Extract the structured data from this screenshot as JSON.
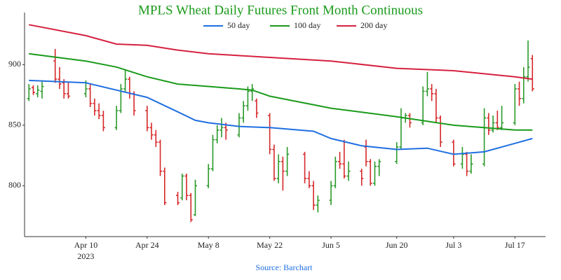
{
  "chart_data": {
    "type": "ohlc",
    "title": "MPLS Wheat Daily Futures Front Month Continuous",
    "title_color": "#1a9a1a",
    "xlabel": "Source: Barchart",
    "xlabel_color": "#1f6fe0",
    "xlim": [
      "2023-03-27",
      "2023-07-24"
    ],
    "xticks": [
      {
        "value": "2023-04-10",
        "label": "Apr 10"
      },
      {
        "value": "2023-04-24",
        "label": "Apr 24"
      },
      {
        "value": "2023-05-08",
        "label": "May 8"
      },
      {
        "value": "2023-05-22",
        "label": "May 22"
      },
      {
        "value": "2023-06-05",
        "label": "Jun 5"
      },
      {
        "value": "2023-06-20",
        "label": "Jun 20"
      },
      {
        "value": "2023-07-03",
        "label": "Jul 3"
      },
      {
        "value": "2023-07-17",
        "label": "Jul 17"
      }
    ],
    "xtick_year": "2023",
    "ylim": [
      758,
      943
    ],
    "yticks": [
      800,
      850,
      900
    ],
    "grid": false,
    "legend": "top",
    "up_color": "#2a9a2a",
    "down_color": "#d62728",
    "x": [
      "2023-03-28",
      "2023-03-29",
      "2023-03-30",
      "2023-03-31",
      "2023-04-03",
      "2023-04-04",
      "2023-04-05",
      "2023-04-06",
      "2023-04-10",
      "2023-04-11",
      "2023-04-12",
      "2023-04-13",
      "2023-04-14",
      "2023-04-17",
      "2023-04-18",
      "2023-04-19",
      "2023-04-20",
      "2023-04-21",
      "2023-04-24",
      "2023-04-25",
      "2023-04-26",
      "2023-04-27",
      "2023-04-28",
      "2023-05-01",
      "2023-05-02",
      "2023-05-03",
      "2023-05-04",
      "2023-05-05",
      "2023-05-08",
      "2023-05-09",
      "2023-05-10",
      "2023-05-11",
      "2023-05-12",
      "2023-05-15",
      "2023-05-16",
      "2023-05-17",
      "2023-05-18",
      "2023-05-19",
      "2023-05-22",
      "2023-05-23",
      "2023-05-24",
      "2023-05-25",
      "2023-05-26",
      "2023-05-30",
      "2023-05-31",
      "2023-06-01",
      "2023-06-02",
      "2023-06-05",
      "2023-06-06",
      "2023-06-07",
      "2023-06-08",
      "2023-06-09",
      "2023-06-12",
      "2023-06-13",
      "2023-06-14",
      "2023-06-15",
      "2023-06-16",
      "2023-06-20",
      "2023-06-21",
      "2023-06-22",
      "2023-06-23",
      "2023-06-26",
      "2023-06-27",
      "2023-06-28",
      "2023-06-29",
      "2023-06-30",
      "2023-07-03",
      "2023-07-05",
      "2023-07-06",
      "2023-07-07",
      "2023-07-10",
      "2023-07-11",
      "2023-07-12",
      "2023-07-13",
      "2023-07-14",
      "2023-07-17",
      "2023-07-18",
      "2023-07-19",
      "2023-07-20",
      "2023-07-21"
    ],
    "open": [
      872,
      881,
      876,
      878,
      903,
      888,
      885,
      876,
      876,
      880,
      868,
      862,
      858,
      848,
      862,
      880,
      888,
      876,
      862,
      848,
      842,
      836,
      812,
      792,
      790,
      808,
      792,
      776,
      800,
      814,
      838,
      846,
      848,
      842,
      856,
      866,
      878,
      870,
      858,
      830,
      806,
      820,
      812,
      826,
      806,
      800,
      784,
      788,
      800,
      820,
      818,
      808,
      812,
      832,
      820,
      802,
      816,
      820,
      832,
      856,
      858,
      852,
      878,
      880,
      876,
      856,
      836,
      818,
      826,
      812,
      818,
      856,
      846,
      852,
      848,
      852,
      880,
      872,
      890,
      905
    ],
    "high": [
      884,
      883,
      883,
      886,
      913,
      898,
      888,
      886,
      887,
      884,
      872,
      868,
      862,
      866,
      884,
      896,
      890,
      878,
      866,
      852,
      846,
      838,
      815,
      795,
      810,
      810,
      794,
      805,
      818,
      842,
      850,
      856,
      852,
      860,
      870,
      882,
      884,
      872,
      860,
      834,
      826,
      824,
      832,
      828,
      812,
      804,
      792,
      804,
      824,
      828,
      838,
      820,
      814,
      838,
      822,
      820,
      822,
      836,
      864,
      860,
      860,
      882,
      894,
      884,
      880,
      858,
      838,
      832,
      828,
      826,
      864,
      860,
      858,
      862,
      866,
      884,
      886,
      898,
      920,
      908
    ],
    "low": [
      870,
      875,
      873,
      872,
      885,
      880,
      872,
      872,
      873,
      865,
      858,
      855,
      845,
      846,
      860,
      877,
      872,
      858,
      845,
      838,
      832,
      808,
      784,
      784,
      788,
      788,
      770,
      775,
      798,
      812,
      835,
      840,
      838,
      840,
      852,
      862,
      870,
      856,
      826,
      804,
      802,
      796,
      808,
      802,
      798,
      780,
      778,
      784,
      798,
      814,
      806,
      804,
      800,
      816,
      800,
      800,
      808,
      818,
      830,
      852,
      848,
      850,
      874,
      870,
      852,
      832,
      816,
      814,
      808,
      810,
      816,
      842,
      844,
      846,
      846,
      850,
      866,
      868,
      886,
      878
    ],
    "close": [
      880,
      877,
      879,
      882,
      888,
      884,
      876,
      874,
      880,
      868,
      862,
      858,
      848,
      862,
      880,
      888,
      876,
      862,
      848,
      842,
      836,
      812,
      786,
      786,
      808,
      792,
      772,
      800,
      814,
      838,
      846,
      848,
      846,
      856,
      866,
      878,
      880,
      860,
      830,
      806,
      820,
      812,
      826,
      806,
      800,
      784,
      788,
      800,
      820,
      818,
      808,
      812,
      806,
      820,
      802,
      816,
      820,
      832,
      856,
      858,
      852,
      878,
      880,
      876,
      856,
      836,
      818,
      826,
      812,
      818,
      856,
      846,
      852,
      848,
      852,
      880,
      872,
      890,
      898,
      880
    ],
    "series": [
      {
        "name": "50 day",
        "color": "#1f6fe0",
        "x": [
          "2023-03-28",
          "2023-04-10",
          "2023-04-17",
          "2023-04-24",
          "2023-05-01",
          "2023-05-05",
          "2023-05-08",
          "2023-05-15",
          "2023-05-22",
          "2023-06-01",
          "2023-06-05",
          "2023-06-12",
          "2023-06-20",
          "2023-06-27",
          "2023-07-03",
          "2023-07-10",
          "2023-07-17",
          "2023-07-21"
        ],
        "values": [
          887,
          885,
          879,
          873,
          861,
          854,
          852,
          849,
          848,
          845,
          839,
          833,
          830,
          831,
          826,
          828,
          835,
          839
        ]
      },
      {
        "name": "100 day",
        "color": "#1a9a1a",
        "x": [
          "2023-03-28",
          "2023-04-10",
          "2023-04-17",
          "2023-04-24",
          "2023-05-01",
          "2023-05-08",
          "2023-05-15",
          "2023-05-18",
          "2023-05-22",
          "2023-06-05",
          "2023-06-20",
          "2023-07-03",
          "2023-07-17",
          "2023-07-21"
        ],
        "values": [
          909,
          903,
          898,
          890,
          884,
          882,
          880,
          879,
          874,
          864,
          857,
          850,
          846,
          846
        ]
      },
      {
        "name": "200 day",
        "color": "#d6213f",
        "x": [
          "2023-03-28",
          "2023-04-10",
          "2023-04-17",
          "2023-04-24",
          "2023-05-01",
          "2023-05-08",
          "2023-05-22",
          "2023-06-05",
          "2023-06-20",
          "2023-07-03",
          "2023-07-17",
          "2023-07-21"
        ],
        "values": [
          933,
          924,
          917,
          916,
          912,
          909,
          906,
          903,
          897,
          895,
          890,
          888
        ]
      }
    ]
  }
}
